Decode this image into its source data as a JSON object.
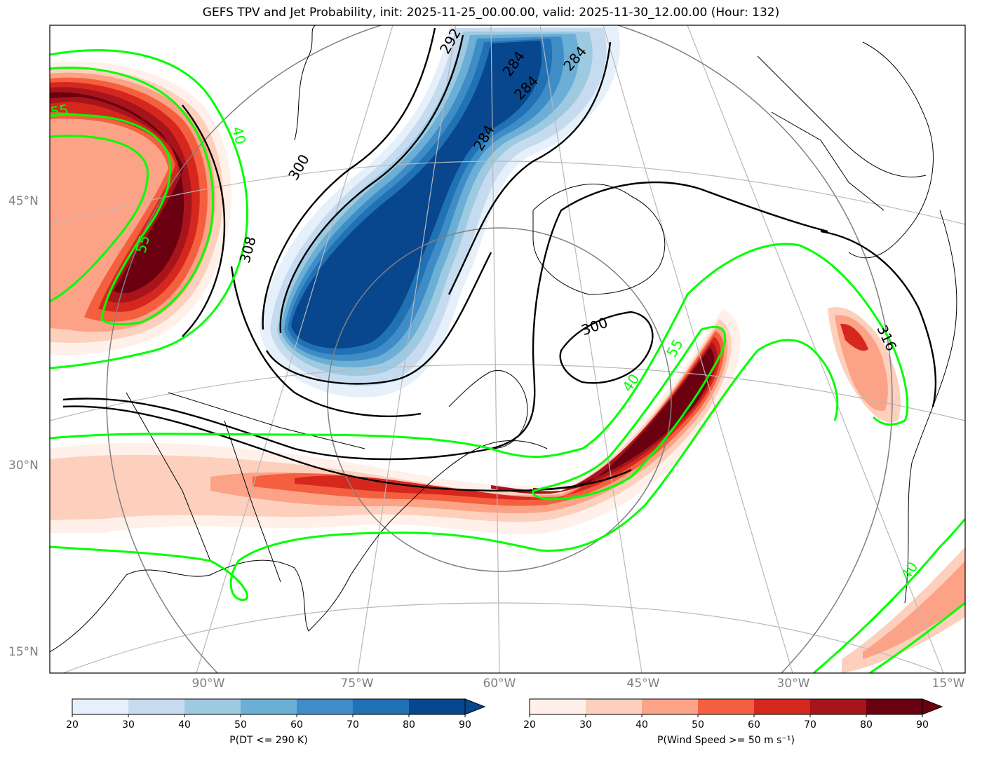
{
  "title": "GEFS TPV and Jet Probability, init: 2025-11-25_00.00.00, valid: 2025-11-30_12.00.00 (Hour: 132)",
  "lat_labels": [
    "45°N",
    "30°N",
    "15°N"
  ],
  "lon_labels": [
    "90°W",
    "75°W",
    "60°W",
    "45°W",
    "30°W",
    "15°W"
  ],
  "contour_labels": {
    "theta_black": [
      "292",
      "284",
      "284",
      "284",
      "284",
      "300",
      "308",
      "300",
      "316"
    ],
    "wind_green": [
      "55",
      "40",
      "55",
      "40",
      "55",
      "40"
    ]
  },
  "colorbar_dt": {
    "label": "P(DT <= 290 K)",
    "ticks": [
      "20",
      "30",
      "40",
      "50",
      "60",
      "70",
      "80",
      "90"
    ],
    "colors": [
      "#e6f0fa",
      "#c6dbef",
      "#9ecae1",
      "#6baed6",
      "#3f8dc7",
      "#2171b5",
      "#08468e"
    ]
  },
  "colorbar_wind": {
    "label": "P(Wind Speed >= 50 m s⁻¹)",
    "ticks": [
      "20",
      "30",
      "40",
      "50",
      "60",
      "70",
      "80",
      "90"
    ],
    "colors": [
      "#fff0ea",
      "#fdd0bd",
      "#fca286",
      "#f4603f",
      "#d6271f",
      "#a8141b",
      "#6b0010"
    ]
  },
  "colors": {
    "jet_contour": "#00ff00",
    "theta_contour": "#000000",
    "grid": "#b0b0b0"
  }
}
